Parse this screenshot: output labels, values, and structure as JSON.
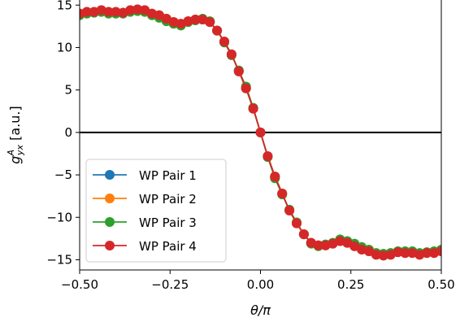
{
  "chart_data": {
    "type": "line",
    "title": "",
    "xlabel": "θ/π",
    "ylabel_main": "g",
    "ylabel_sup": "A",
    "ylabel_sub": "yx",
    "ylabel_unit": "[a.u.]",
    "xlim": [
      -0.5,
      0.5
    ],
    "ylim": [
      -16.2,
      15.6
    ],
    "xticks": [
      -0.5,
      -0.25,
      0.0,
      0.25,
      0.5
    ],
    "xtick_labels": [
      "−0.50",
      "−0.25",
      "0.00",
      "0.25",
      "0.50"
    ],
    "yticks": [
      15,
      10,
      5,
      0,
      -5,
      -10,
      -15
    ],
    "ytick_labels": [
      "15",
      "10",
      "5",
      "0",
      "−5",
      "−10",
      "−15"
    ],
    "zero_line": true,
    "grid": false,
    "legend_position": "lower-left",
    "x": [
      -0.5,
      -0.48,
      -0.46,
      -0.44,
      -0.42,
      -0.4,
      -0.38,
      -0.36,
      -0.34,
      -0.32,
      -0.3,
      -0.28,
      -0.26,
      -0.24,
      -0.22,
      -0.2,
      -0.18,
      -0.16,
      -0.14,
      -0.12,
      -0.1,
      -0.08,
      -0.06,
      -0.04,
      -0.02,
      0.0,
      0.02,
      0.04,
      0.06,
      0.08,
      0.1,
      0.12,
      0.14,
      0.16,
      0.18,
      0.2,
      0.22,
      0.24,
      0.26,
      0.28,
      0.3,
      0.32,
      0.34,
      0.36,
      0.38,
      0.4,
      0.42,
      0.44,
      0.46,
      0.48,
      0.5
    ],
    "series": [
      {
        "name": "WP Pair 1",
        "color": "#1f77b4",
        "values": [
          14.0,
          14.2,
          14.2,
          14.4,
          14.2,
          14.2,
          14.1,
          14.4,
          14.5,
          14.4,
          14.0,
          13.8,
          13.4,
          13.0,
          12.8,
          13.1,
          13.3,
          13.3,
          13.0,
          12.0,
          10.7,
          9.2,
          7.2,
          5.2,
          2.8,
          0.0,
          -2.8,
          -5.2,
          -7.2,
          -9.2,
          -10.7,
          -12.0,
          -13.0,
          -13.3,
          -13.3,
          -13.1,
          -12.8,
          -13.0,
          -13.4,
          -13.8,
          -14.0,
          -14.4,
          -14.5,
          -14.4,
          -14.1,
          -14.2,
          -14.2,
          -14.4,
          -14.2,
          -14.2,
          -14.0
        ]
      },
      {
        "name": "WP Pair 2",
        "color": "#ff7f0e",
        "values": [
          14.0,
          14.2,
          14.2,
          14.4,
          14.2,
          14.2,
          14.1,
          14.4,
          14.5,
          14.4,
          14.0,
          13.8,
          13.4,
          13.0,
          12.8,
          13.1,
          13.3,
          13.3,
          13.0,
          12.0,
          10.7,
          9.2,
          7.2,
          5.2,
          2.8,
          0.0,
          -2.8,
          -5.2,
          -7.2,
          -9.2,
          -10.7,
          -12.0,
          -13.0,
          -13.3,
          -13.3,
          -13.1,
          -12.8,
          -13.0,
          -13.4,
          -13.8,
          -14.0,
          -14.4,
          -14.5,
          -14.4,
          -14.1,
          -14.2,
          -14.2,
          -14.4,
          -14.2,
          -14.2,
          -14.0
        ]
      },
      {
        "name": "WP Pair 3",
        "color": "#2ca02c",
        "values": [
          13.8,
          14.0,
          14.1,
          14.2,
          14.0,
          14.0,
          14.0,
          14.2,
          14.3,
          14.2,
          13.8,
          13.5,
          13.1,
          12.8,
          12.6,
          13.0,
          13.2,
          13.4,
          13.1,
          12.0,
          10.6,
          9.1,
          7.3,
          5.4,
          2.9,
          0.0,
          -2.9,
          -5.4,
          -7.3,
          -9.1,
          -10.6,
          -12.0,
          -13.1,
          -13.4,
          -13.2,
          -13.0,
          -12.6,
          -12.8,
          -13.1,
          -13.5,
          -13.8,
          -14.2,
          -14.3,
          -14.2,
          -14.0,
          -14.0,
          -14.0,
          -14.2,
          -14.1,
          -14.0,
          -13.8
        ]
      },
      {
        "name": "WP Pair 4",
        "color": "#d62728",
        "values": [
          14.0,
          14.2,
          14.2,
          14.4,
          14.2,
          14.2,
          14.1,
          14.4,
          14.5,
          14.4,
          14.0,
          13.8,
          13.4,
          13.0,
          12.8,
          13.1,
          13.3,
          13.3,
          13.0,
          12.0,
          10.7,
          9.2,
          7.2,
          5.2,
          2.8,
          0.0,
          -2.8,
          -5.2,
          -7.2,
          -9.2,
          -10.7,
          -12.0,
          -13.0,
          -13.3,
          -13.3,
          -13.1,
          -12.8,
          -13.0,
          -13.4,
          -13.8,
          -14.0,
          -14.4,
          -14.5,
          -14.4,
          -14.1,
          -14.2,
          -14.2,
          -14.4,
          -14.2,
          -14.2,
          -14.0
        ]
      }
    ]
  }
}
